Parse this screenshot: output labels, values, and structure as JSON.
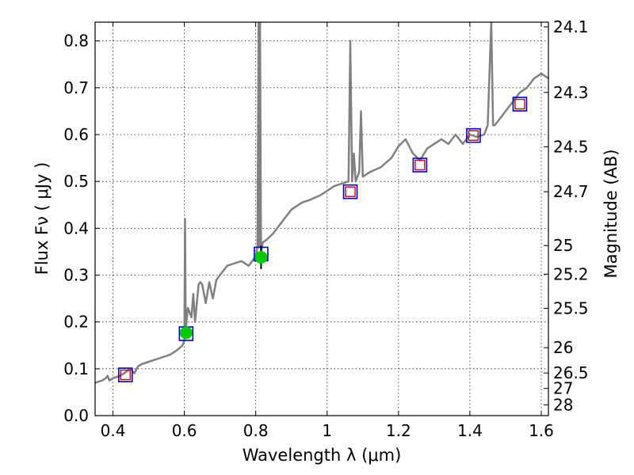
{
  "chart_data": {
    "type": "line",
    "title": "",
    "xlabel": "Wavelength  λ (μm)",
    "ylabel": "Flux  Fν  ( μJy )",
    "y2label": "Magnitude (AB)",
    "xlim": [
      0.35,
      1.62
    ],
    "ylim": [
      0.0,
      0.84
    ],
    "grid": true,
    "x_ticks": [
      0.4,
      0.6,
      0.8,
      1.0,
      1.2,
      1.4,
      1.6
    ],
    "x_tick_labels": [
      "0.4",
      "0.6",
      "0.8",
      "1",
      "1.2",
      "1.4",
      "1.6"
    ],
    "y_ticks": [
      0.0,
      0.1,
      0.2,
      0.3,
      0.4,
      0.5,
      0.6,
      0.7,
      0.8
    ],
    "y_tick_labels": [
      "0.0",
      "0.1",
      "0.2",
      "0.3",
      "0.4",
      "0.5",
      "0.6",
      "0.7",
      "0.8"
    ],
    "y2_ticks": [
      {
        "label": "24.1",
        "flux": 0.83
      },
      {
        "label": "24.3",
        "flux": 0.69
      },
      {
        "label": "24.5",
        "flux": 0.574
      },
      {
        "label": "24.7",
        "flux": 0.478
      },
      {
        "label": "25",
        "flux": 0.363
      },
      {
        "label": "25.2",
        "flux": 0.302
      },
      {
        "label": "25.5",
        "flux": 0.229
      },
      {
        "label": "26",
        "flux": 0.145
      },
      {
        "label": "26.5",
        "flux": 0.091
      },
      {
        "label": "27",
        "flux": 0.058
      },
      {
        "label": "28",
        "flux": 0.023
      }
    ],
    "colors": {
      "model": "#808080",
      "observed_fill": "#00cc00",
      "model_box": "#0000cc",
      "red_box": "#cc0000"
    },
    "series": [
      {
        "kind": "model_spectrum",
        "x": [
          0.35,
          0.37,
          0.38,
          0.385,
          0.39,
          0.4,
          0.42,
          0.43,
          0.44,
          0.45,
          0.46,
          0.47,
          0.48,
          0.5,
          0.52,
          0.54,
          0.56,
          0.58,
          0.595,
          0.6,
          0.602,
          0.604,
          0.606,
          0.61,
          0.62,
          0.625,
          0.63,
          0.64,
          0.645,
          0.65,
          0.66,
          0.67,
          0.68,
          0.69,
          0.7,
          0.72,
          0.74,
          0.76,
          0.78,
          0.8,
          0.805,
          0.808,
          0.81,
          0.812,
          0.815,
          0.82,
          0.83,
          0.85,
          0.88,
          0.9,
          0.93,
          0.95,
          0.98,
          1.0,
          1.02,
          1.04,
          1.06,
          1.065,
          1.07,
          1.075,
          1.08,
          1.09,
          1.095,
          1.1,
          1.12,
          1.15,
          1.18,
          1.2,
          1.22,
          1.24,
          1.26,
          1.28,
          1.3,
          1.32,
          1.34,
          1.36,
          1.38,
          1.4,
          1.42,
          1.44,
          1.45,
          1.46,
          1.465,
          1.47,
          1.48,
          1.5,
          1.52,
          1.54,
          1.56,
          1.58,
          1.6,
          1.62
        ],
        "y": [
          0.07,
          0.075,
          0.08,
          0.085,
          0.075,
          0.08,
          0.085,
          0.09,
          0.095,
          0.1,
          0.09,
          0.105,
          0.11,
          0.115,
          0.12,
          0.125,
          0.13,
          0.14,
          0.15,
          0.16,
          0.42,
          0.17,
          0.2,
          0.23,
          0.21,
          0.26,
          0.2,
          0.28,
          0.285,
          0.28,
          0.24,
          0.285,
          0.25,
          0.29,
          0.3,
          0.32,
          0.325,
          0.33,
          0.32,
          0.34,
          0.36,
          0.84,
          0.36,
          0.84,
          0.35,
          0.37,
          0.375,
          0.39,
          0.42,
          0.44,
          0.455,
          0.46,
          0.47,
          0.48,
          0.49,
          0.495,
          0.5,
          0.8,
          0.5,
          0.56,
          0.5,
          0.52,
          0.65,
          0.51,
          0.52,
          0.53,
          0.55,
          0.575,
          0.59,
          0.56,
          0.545,
          0.57,
          0.58,
          0.59,
          0.58,
          0.6,
          0.58,
          0.6,
          0.595,
          0.6,
          0.62,
          0.84,
          0.62,
          0.62,
          0.63,
          0.65,
          0.67,
          0.69,
          0.7,
          0.72,
          0.73,
          0.72
        ]
      },
      {
        "kind": "observed",
        "x": [
          0.605,
          0.815
        ],
        "y": [
          0.177,
          0.338
        ],
        "yerr": [
          0.012,
          0.025
        ]
      },
      {
        "kind": "model_photometry",
        "x": [
          0.435,
          0.605,
          0.815,
          1.065,
          1.26,
          1.41,
          1.54
        ],
        "y": [
          0.087,
          0.175,
          0.345,
          0.478,
          0.535,
          0.598,
          0.665
        ]
      },
      {
        "kind": "model_photometry_red",
        "x": [
          0.435,
          1.065,
          1.26,
          1.41,
          1.54
        ],
        "y": [
          0.087,
          0.478,
          0.535,
          0.598,
          0.665
        ]
      }
    ]
  }
}
